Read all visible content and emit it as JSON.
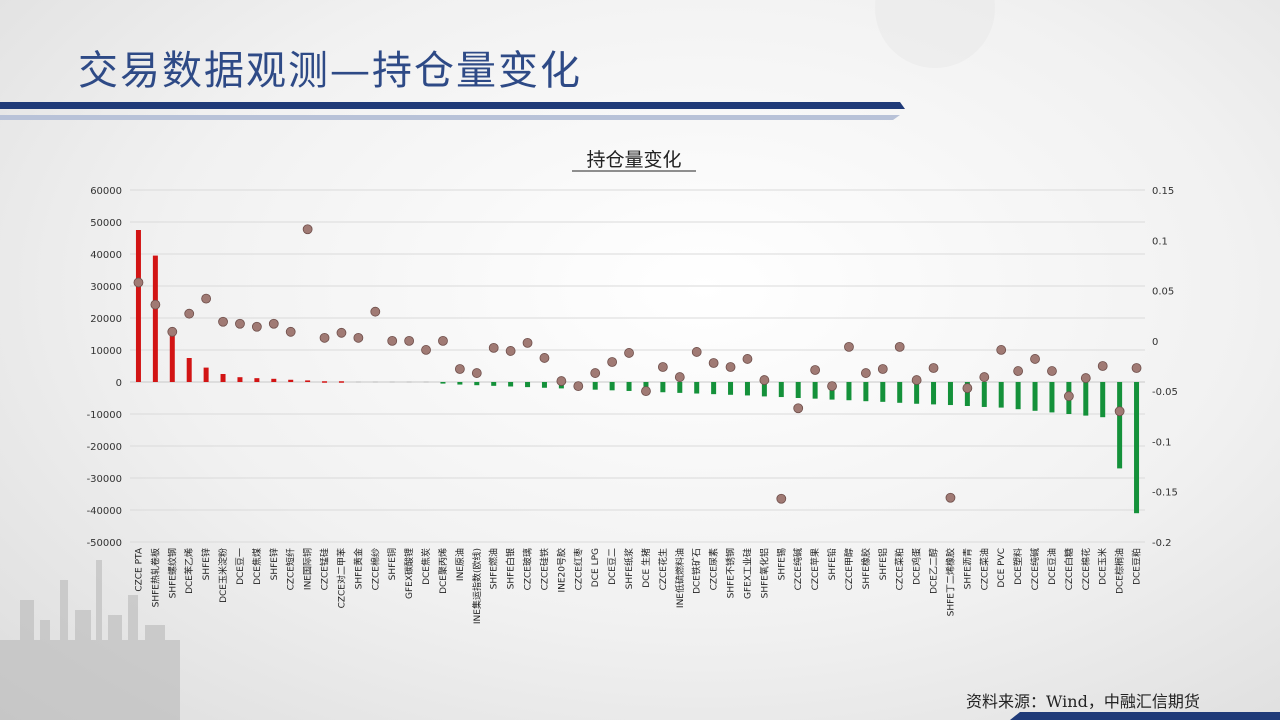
{
  "page": {
    "title": "交易数据观测—持仓量变化",
    "footer": "资料来源：Wind，中融汇信期货",
    "colors": {
      "title": "#2e4a86",
      "band": "#1f3a78",
      "positive": "#d21414",
      "negative": "#14913a",
      "dot": "#a07a74"
    }
  },
  "chart_data": {
    "type": "bar",
    "title": "持仓量变化",
    "left_axis": {
      "min": -50000,
      "max": 60000,
      "step": 10000,
      "tick_labels": [
        "60000",
        "50000",
        "40000",
        "30000",
        "20000",
        "10000",
        "0",
        "-10000",
        "-20000",
        "-30000",
        "-40000",
        "-50000"
      ]
    },
    "right_axis": {
      "min": -0.2,
      "max": 0.15,
      "step": 0.05,
      "tick_labels": [
        "0.15",
        "0.1",
        "0.05",
        "0",
        "-0.05",
        "-0.1",
        "-0.15",
        "-0.2"
      ]
    },
    "grid": true,
    "categories": [
      "CZCE PTA",
      "SHFE热轧卷板",
      "SHFE螺纹钢",
      "DCE苯乙烯",
      "SHFE锌",
      "DCE玉米淀粉",
      "DCE豆一",
      "DCE焦煤",
      "SHFE锌",
      "CZCE短纤",
      "INE国际铜",
      "CZCE锰硅",
      "CZCE对二甲苯",
      "SHFE黄金",
      "CZCE棉纱",
      "SHFE铜",
      "GFEX碳酸锂",
      "DCE焦炭",
      "DCE聚丙烯",
      "INE原油",
      "INE集运指数(欧线)",
      "SHFE燃油",
      "SHFE白银",
      "CZCE玻璃",
      "CZCE硅铁",
      "INE20号胶",
      "CZCE红枣",
      "DCE LPG",
      "DCE豆二",
      "SHFE纸浆",
      "DCE 生猪",
      "CZCE花生",
      "INE低硫燃料油",
      "DCE铁矿石",
      "CZCE尿素",
      "SHFE不锈钢",
      "GFEX工业硅",
      "SHFE氧化铝",
      "SHFE锡",
      "CZCE纯碱",
      "CZCE苹果",
      "SHFE铅",
      "CZCE甲醇",
      "SHFE橡胶",
      "SHFE铝",
      "CZCE菜粕",
      "DCE鸡蛋",
      "DCE乙二醇",
      "SHFE丁二烯橡胶",
      "SHFE沥青",
      "CZCE菜油",
      "DCE PVC",
      "DCE塑料",
      "CZCE纯碱",
      "DCE豆油",
      "CZCE白糖",
      "CZCE棉花",
      "DCE玉米",
      "DCE棕榈油",
      "DCE豆粕"
    ],
    "series": [
      {
        "type": "bar",
        "axis": "left",
        "values": [
          47500,
          39500,
          17000,
          7500,
          4500,
          2500,
          1500,
          1200,
          1000,
          700,
          500,
          300,
          200,
          0,
          0,
          0,
          0,
          0,
          -500,
          -800,
          -1000,
          -1200,
          -1400,
          -1600,
          -1800,
          -2000,
          -2200,
          -2400,
          -2600,
          -2800,
          -3000,
          -3200,
          -3400,
          -3600,
          -3800,
          -4000,
          -4200,
          -4500,
          -4700,
          -5000,
          -5200,
          -5500,
          -5700,
          -6000,
          -6200,
          -6500,
          -6800,
          -7000,
          -7200,
          -7500,
          -7800,
          -8000,
          -8500,
          -9000,
          -9500,
          -10000,
          -10500,
          -11000,
          -27000,
          -41000
        ]
      },
      {
        "type": "scatter",
        "axis": "right",
        "values": [
          0.058,
          0.036,
          0.009,
          0.027,
          0.042,
          0.019,
          0.017,
          0.014,
          0.017,
          0.009,
          0.111,
          0.003,
          0.008,
          0.003,
          0.029,
          0.0,
          0.0,
          -0.009,
          0.0,
          -0.028,
          -0.032,
          -0.007,
          -0.01,
          -0.002,
          -0.017,
          -0.04,
          -0.045,
          -0.032,
          -0.021,
          -0.012,
          -0.05,
          -0.026,
          -0.036,
          -0.011,
          -0.022,
          -0.026,
          -0.018,
          -0.039,
          -0.157,
          -0.067,
          -0.029,
          -0.045,
          -0.006,
          -0.032,
          -0.028,
          -0.006,
          -0.039,
          -0.027,
          -0.156,
          -0.047,
          -0.036,
          -0.009,
          -0.03,
          -0.018,
          -0.03,
          -0.055,
          -0.037,
          -0.025,
          -0.07,
          -0.027
        ]
      }
    ]
  }
}
